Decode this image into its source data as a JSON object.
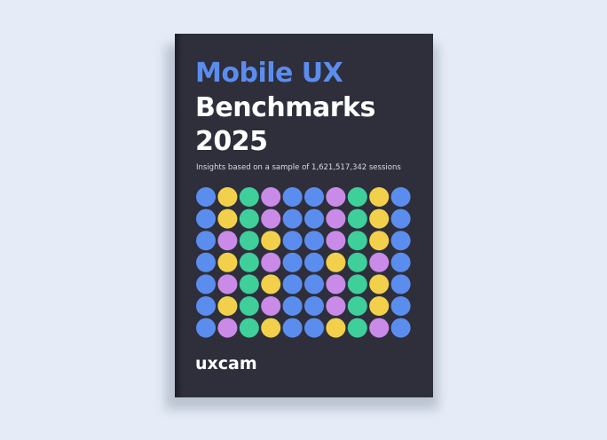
{
  "cover": {
    "title_line_1": "Mobile UX",
    "title_line_2": "Benchmarks",
    "title_line_3": "2025",
    "subtitle": "Insights based on a sample of 1,621,517,342 sessions",
    "logo": "uxcam"
  }
}
